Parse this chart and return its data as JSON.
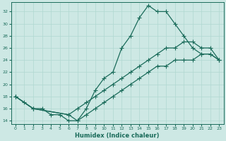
{
  "xlabel": "Humidex (Indice chaleur)",
  "background_color": "#cde8e4",
  "grid_color": "#b0d8d0",
  "line_color": "#1a6b5a",
  "xlim": [
    -0.5,
    23.5
  ],
  "ylim": [
    13.5,
    33.5
  ],
  "xticks": [
    0,
    1,
    2,
    3,
    4,
    5,
    6,
    7,
    8,
    9,
    10,
    11,
    12,
    13,
    14,
    15,
    16,
    17,
    18,
    19,
    20,
    21,
    22,
    23
  ],
  "yticks": [
    14,
    16,
    18,
    20,
    22,
    24,
    26,
    28,
    30,
    32
  ],
  "line1_x": [
    0,
    1,
    2,
    3,
    4,
    5,
    6,
    7,
    8,
    9,
    10,
    11,
    12,
    13,
    14,
    15,
    16,
    17,
    18,
    19,
    20,
    21,
    22,
    23
  ],
  "line1_y": [
    18,
    17,
    16,
    16,
    15,
    15,
    14,
    14,
    16,
    19,
    21,
    22,
    26,
    28,
    31,
    33,
    32,
    32,
    30,
    28,
    26,
    25,
    25,
    24
  ],
  "line2_x": [
    0,
    2,
    6,
    7,
    8,
    9,
    10,
    11,
    12,
    13,
    14,
    15,
    16,
    17,
    18,
    19,
    20,
    21,
    22,
    23
  ],
  "line2_y": [
    18,
    16,
    15,
    16,
    17,
    18,
    19,
    20,
    21,
    22,
    23,
    24,
    25,
    26,
    26,
    27,
    27,
    26,
    26,
    24
  ],
  "line3_x": [
    0,
    2,
    6,
    7,
    8,
    9,
    10,
    11,
    12,
    13,
    14,
    15,
    16,
    17,
    18,
    19,
    20,
    21,
    22,
    23
  ],
  "line3_y": [
    18,
    16,
    15,
    14,
    15,
    16,
    17,
    18,
    19,
    20,
    21,
    22,
    23,
    23,
    24,
    24,
    24,
    25,
    25,
    24
  ]
}
